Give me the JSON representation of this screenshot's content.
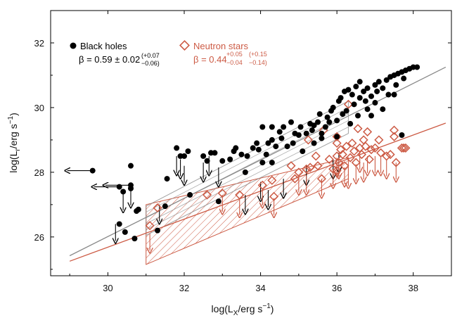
{
  "chart_data": {
    "type": "scatter",
    "title": "",
    "xlabel": {
      "prefix": "log(L",
      "sub": "X",
      "suffix": "/erg s",
      "sup": "−1",
      "end": ")"
    },
    "ylabel": {
      "prefix": "log(L",
      "sub": "r",
      "suffix": "/erg s",
      "sup": "−1",
      "end": ")"
    },
    "xlim": [
      28.5,
      39.0
    ],
    "ylim": [
      24.8,
      33.0
    ],
    "xticks": [
      30,
      32,
      34,
      36,
      38
    ],
    "yticks": [
      26,
      28,
      30,
      32
    ],
    "colors": {
      "bh": "#000000",
      "ns": "#cc5a44",
      "bh_line": "#8a8a8a",
      "ns_line": "#cc5a44"
    },
    "legend": {
      "bh": {
        "label": "Black holes",
        "beta": "β = 0.59 ± 0.02",
        "err_up": "(+0.07",
        "err_dn": "−0.06)"
      },
      "ns": {
        "label": "Neutron stars",
        "beta": "β = 0.44",
        "beta_up": "+0.05",
        "beta_dn": "−0.04",
        "err_up": "(+0.15",
        "err_dn": "−0.14)"
      }
    },
    "fits": {
      "bh": {
        "x_range": [
          29.0,
          38.85
        ],
        "y_range": [
          25.42,
          31.25
        ]
      },
      "ns": {
        "x_range": [
          29.0,
          38.85
        ],
        "y_range": [
          25.25,
          29.52
        ]
      }
    },
    "bands": {
      "bh": {
        "x_range": [
          31.0,
          36.3
        ],
        "y_low": [
          26.05,
          29.2
        ],
        "y_high": [
          26.95,
          30.2
        ]
      },
      "ns": {
        "x_range": [
          31.0,
          36.3
        ],
        "y_low": [
          25.15,
          27.8
        ],
        "y_high": [
          27.0,
          28.45
        ]
      }
    },
    "series": [
      {
        "name": "Black holes",
        "marker": "filled-circle",
        "points": [
          [
            30.6,
            28.2
          ],
          [
            30.4,
            27.4
          ],
          [
            30.3,
            26.4
          ],
          [
            30.6,
            27.5
          ],
          [
            30.45,
            26.15
          ],
          [
            30.7,
            25.95
          ],
          [
            30.75,
            26.8
          ],
          [
            30.8,
            26.85
          ],
          [
            31.3,
            26.2
          ],
          [
            31.5,
            26.95
          ],
          [
            31.55,
            27.8
          ],
          [
            31.8,
            28.75
          ],
          [
            31.9,
            28.5
          ],
          [
            32.0,
            28.5
          ],
          [
            32.1,
            28.65
          ],
          [
            32.15,
            27.3
          ],
          [
            32.5,
            28.5
          ],
          [
            32.6,
            28.35
          ],
          [
            32.7,
            28.6
          ],
          [
            32.8,
            28.6
          ],
          [
            32.9,
            27.1
          ],
          [
            33.2,
            28.4
          ],
          [
            33.3,
            28.65
          ],
          [
            33.35,
            28.75
          ],
          [
            33.5,
            28.55
          ],
          [
            33.6,
            28.0
          ],
          [
            33.65,
            28.5
          ],
          [
            33.8,
            28.75
          ],
          [
            33.9,
            28.9
          ],
          [
            33.95,
            28.7
          ],
          [
            34.05,
            28.3
          ],
          [
            34.15,
            28.55
          ],
          [
            34.2,
            28.9
          ],
          [
            34.3,
            28.3
          ],
          [
            34.3,
            29.0
          ],
          [
            34.4,
            28.8
          ],
          [
            34.5,
            29.25
          ],
          [
            34.55,
            29.05
          ],
          [
            34.6,
            29.4
          ],
          [
            34.7,
            28.8
          ],
          [
            34.8,
            29.55
          ],
          [
            34.85,
            28.9
          ],
          [
            34.9,
            29.2
          ],
          [
            35.0,
            29.15
          ],
          [
            35.05,
            29.4
          ],
          [
            35.1,
            28.65
          ],
          [
            35.2,
            29.2
          ],
          [
            35.3,
            29.5
          ],
          [
            35.35,
            29.3
          ],
          [
            35.4,
            28.9
          ],
          [
            35.5,
            29.55
          ],
          [
            35.55,
            29.8
          ],
          [
            35.6,
            29.2
          ],
          [
            35.7,
            29.4
          ],
          [
            35.75,
            29.7
          ],
          [
            35.8,
            29.55
          ],
          [
            35.85,
            29.9
          ],
          [
            35.9,
            30.0
          ],
          [
            36.0,
            29.6
          ],
          [
            36.05,
            30.2
          ],
          [
            36.1,
            30.3
          ],
          [
            36.15,
            29.8
          ],
          [
            36.2,
            30.5
          ],
          [
            36.25,
            29.9
          ],
          [
            36.3,
            30.55
          ],
          [
            36.4,
            30.4
          ],
          [
            36.45,
            30.1
          ],
          [
            36.5,
            30.65
          ],
          [
            36.55,
            29.75
          ],
          [
            36.6,
            30.3
          ],
          [
            36.7,
            30.5
          ],
          [
            36.75,
            30.2
          ],
          [
            36.8,
            30.6
          ],
          [
            36.9,
            30.35
          ],
          [
            37.0,
            30.7
          ],
          [
            37.05,
            30.5
          ],
          [
            37.1,
            30.8
          ],
          [
            37.2,
            30.6
          ],
          [
            37.3,
            30.85
          ],
          [
            37.35,
            30.4
          ],
          [
            37.4,
            30.95
          ],
          [
            37.5,
            31.0
          ],
          [
            37.55,
            30.7
          ],
          [
            37.6,
            31.05
          ],
          [
            37.7,
            31.1
          ],
          [
            37.75,
            30.9
          ],
          [
            37.8,
            31.15
          ],
          [
            37.9,
            31.2
          ],
          [
            38.0,
            31.25
          ],
          [
            38.1,
            31.25
          ],
          [
            36.0,
            29.1
          ],
          [
            35.6,
            29.05
          ],
          [
            36.35,
            29.5
          ],
          [
            37.7,
            29.15
          ],
          [
            36.9,
            29.75
          ],
          [
            37.5,
            30.4
          ],
          [
            36.6,
            30.8
          ],
          [
            35.4,
            29.45
          ],
          [
            34.05,
            29.4
          ],
          [
            34.3,
            29.4
          ],
          [
            33.0,
            28.35
          ],
          [
            36.8,
            29.95
          ],
          [
            37.2,
            29.95
          ],
          [
            37.0,
            30.15
          ]
        ]
      },
      {
        "name": "Neutron stars",
        "marker": "open-diamond",
        "points": [
          [
            31.1,
            26.35
          ],
          [
            31.3,
            26.9
          ],
          [
            32.6,
            27.3
          ],
          [
            33.0,
            27.35
          ],
          [
            33.45,
            27.3
          ],
          [
            34.05,
            27.6
          ],
          [
            34.3,
            27.75
          ],
          [
            34.35,
            27.25
          ],
          [
            34.8,
            28.2
          ],
          [
            35.0,
            28.0
          ],
          [
            35.2,
            28.1
          ],
          [
            35.25,
            29.0
          ],
          [
            35.3,
            28.15
          ],
          [
            35.45,
            28.5
          ],
          [
            35.5,
            28.2
          ],
          [
            35.6,
            27.8
          ],
          [
            35.65,
            29.3
          ],
          [
            35.8,
            28.4
          ],
          [
            35.9,
            28.1
          ],
          [
            36.0,
            28.5
          ],
          [
            36.0,
            28.9
          ],
          [
            36.05,
            28.3
          ],
          [
            36.1,
            28.7
          ],
          [
            36.15,
            28.55
          ],
          [
            36.2,
            28.2
          ],
          [
            36.25,
            28.8
          ],
          [
            36.3,
            30.1
          ],
          [
            36.35,
            28.45
          ],
          [
            36.4,
            28.9
          ],
          [
            36.45,
            28.65
          ],
          [
            36.5,
            28.3
          ],
          [
            36.55,
            29.35
          ],
          [
            36.6,
            28.75
          ],
          [
            36.65,
            28.55
          ],
          [
            36.7,
            29.0
          ],
          [
            36.75,
            28.8
          ],
          [
            36.8,
            29.25
          ],
          [
            36.85,
            28.4
          ],
          [
            36.9,
            28.7
          ],
          [
            37.0,
            28.75
          ],
          [
            37.1,
            29.0
          ],
          [
            37.15,
            28.6
          ],
          [
            37.3,
            28.5
          ],
          [
            37.4,
            28.55
          ],
          [
            37.5,
            29.1
          ],
          [
            37.55,
            28.3
          ],
          [
            37.7,
            28.75
          ],
          [
            37.75,
            28.75
          ],
          [
            37.8,
            28.75
          ],
          [
            36.0,
            29.1
          ],
          [
            37.5,
            29.3
          ],
          [
            34.9,
            27.8
          ],
          [
            36.0,
            28.05
          ]
        ]
      },
      {
        "name": "Black hole upper limits",
        "marker": "filled-circle-arrow-down",
        "points": [
          [
            30.2,
            26.4
          ],
          [
            30.4,
            27.35
          ],
          [
            30.6,
            27.5
          ],
          [
            31.35,
            27.0
          ],
          [
            31.8,
            28.5
          ],
          [
            31.9,
            28.4
          ],
          [
            32.0,
            28.2
          ],
          [
            32.5,
            28.3
          ],
          [
            32.65,
            28.5
          ],
          [
            32.9,
            28.15
          ],
          [
            33.6,
            27.3
          ],
          [
            34.0,
            27.7
          ],
          [
            34.2,
            27.45
          ],
          [
            34.6,
            27.8
          ],
          [
            35.2,
            28.2
          ],
          [
            35.9,
            28.4
          ],
          [
            36.05,
            28.6
          ]
        ]
      },
      {
        "name": "Neutron star upper limits",
        "marker": "open-diamond-arrow-down",
        "points": [
          [
            31.1,
            26.1
          ],
          [
            33.0,
            27.3
          ],
          [
            33.45,
            27.2
          ],
          [
            34.05,
            27.5
          ],
          [
            34.35,
            27.2
          ],
          [
            35.0,
            27.9
          ],
          [
            35.2,
            27.9
          ],
          [
            35.6,
            27.8
          ],
          [
            35.9,
            28.1
          ],
          [
            36.0,
            28.45
          ],
          [
            36.05,
            28.4
          ],
          [
            36.2,
            28.15
          ],
          [
            36.3,
            28.1
          ],
          [
            36.5,
            28.25
          ],
          [
            36.6,
            28.6
          ],
          [
            36.7,
            28.3
          ],
          [
            36.8,
            28.5
          ],
          [
            37.0,
            28.5
          ],
          [
            37.15,
            28.5
          ],
          [
            37.3,
            28.4
          ],
          [
            37.55,
            28.3
          ]
        ]
      },
      {
        "name": "Black hole left limits",
        "marker": "arrow-left",
        "points": [
          [
            29.6,
            28.05
          ],
          [
            30.3,
            27.55
          ],
          [
            30.6,
            27.6
          ]
        ]
      }
    ]
  }
}
